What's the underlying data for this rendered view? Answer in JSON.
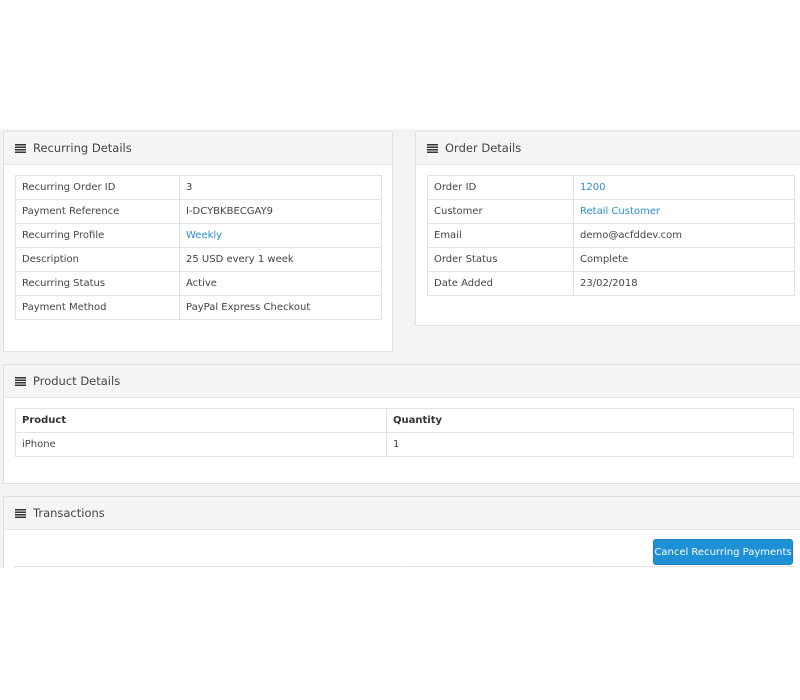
{
  "recurring": {
    "title": "Recurring Details",
    "rows": [
      {
        "label": "Recurring Order ID",
        "value": "3"
      },
      {
        "label": "Payment Reference",
        "value": "I-DCYBKBECGAY9"
      },
      {
        "label": "Recurring Profile",
        "value": "Weekly"
      },
      {
        "label": "Description",
        "value": "25 USD every 1 week"
      },
      {
        "label": "Recurring Status",
        "value": "Active"
      },
      {
        "label": "Payment Method",
        "value": "PayPal Express Checkout"
      }
    ]
  },
  "order": {
    "title": "Order Details",
    "rows": [
      {
        "label": "Order ID",
        "value": "1200"
      },
      {
        "label": "Customer",
        "value": "Retail Customer"
      },
      {
        "label": "Email",
        "value": "demo@acfddev.com"
      },
      {
        "label": "Order Status",
        "value": "Complete"
      },
      {
        "label": "Date Added",
        "value": "23/02/2018"
      }
    ]
  },
  "product": {
    "title": "Product Details",
    "headers": [
      "Product",
      "Quantity"
    ],
    "rows": [
      [
        "iPhone",
        "1"
      ]
    ]
  },
  "transactions": {
    "title": "Transactions",
    "cancel_label": "Cancel Recurring Payments"
  },
  "colors": {
    "link": "#2a8fcf",
    "button": "#1e91d6"
  }
}
